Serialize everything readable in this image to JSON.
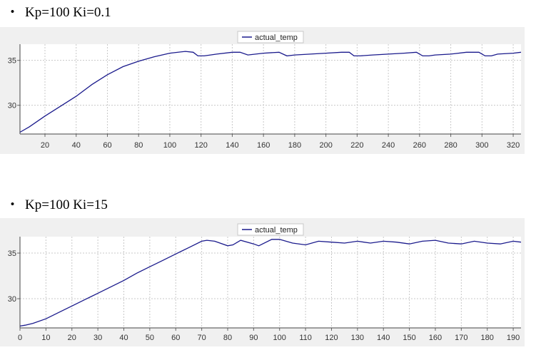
{
  "headings": [
    {
      "bullet": "・",
      "text": "Kp=100 Ki=0.1"
    },
    {
      "bullet": "・",
      "text": "Kp=100 Ki=15"
    }
  ],
  "colors": {
    "line": "#1a1a8c",
    "plot_bg": "#ffffff",
    "frame_bg": "#f0f0f0",
    "grid": "#c8c8c8"
  },
  "chart_data": [
    {
      "type": "line",
      "title": "",
      "xlabel": "",
      "ylabel": "",
      "legend": [
        "actual_temp"
      ],
      "legend_position": "top-center",
      "grid": true,
      "xlim": [
        4,
        325
      ],
      "ylim": [
        26.8,
        36.8
      ],
      "xticks": [
        20,
        40,
        60,
        80,
        100,
        120,
        140,
        160,
        180,
        200,
        220,
        240,
        260,
        280,
        300,
        320
      ],
      "yticks": [
        30,
        35
      ],
      "series": [
        {
          "name": "actual_temp",
          "x": [
            4,
            10,
            20,
            30,
            40,
            50,
            60,
            70,
            80,
            90,
            100,
            110,
            115,
            118,
            122,
            130,
            140,
            145,
            150,
            160,
            170,
            175,
            180,
            190,
            200,
            210,
            215,
            218,
            222,
            230,
            240,
            250,
            258,
            262,
            266,
            270,
            280,
            290,
            298,
            302,
            306,
            310,
            320,
            325
          ],
          "y": [
            27.0,
            27.6,
            28.8,
            29.9,
            31.0,
            32.3,
            33.4,
            34.3,
            34.9,
            35.4,
            35.8,
            36.0,
            35.9,
            35.5,
            35.5,
            35.7,
            35.9,
            35.9,
            35.6,
            35.8,
            35.9,
            35.5,
            35.6,
            35.7,
            35.8,
            35.9,
            35.9,
            35.5,
            35.5,
            35.6,
            35.7,
            35.8,
            35.9,
            35.5,
            35.5,
            35.6,
            35.7,
            35.9,
            35.9,
            35.5,
            35.5,
            35.7,
            35.8,
            35.9
          ]
        }
      ]
    },
    {
      "type": "line",
      "title": "",
      "xlabel": "",
      "ylabel": "",
      "legend": [
        "actual_temp"
      ],
      "legend_position": "top-center",
      "grid": true,
      "xlim": [
        0,
        193
      ],
      "ylim": [
        26.8,
        36.8
      ],
      "xticks": [
        0,
        10,
        20,
        30,
        40,
        50,
        60,
        70,
        80,
        90,
        100,
        110,
        120,
        130,
        140,
        150,
        160,
        170,
        180,
        190
      ],
      "yticks": [
        30,
        35
      ],
      "series": [
        {
          "name": "actual_temp",
          "x": [
            0,
            2,
            5,
            10,
            15,
            20,
            25,
            30,
            35,
            40,
            45,
            50,
            55,
            60,
            65,
            70,
            72,
            75,
            80,
            82,
            85,
            90,
            92,
            97,
            100,
            105,
            110,
            115,
            120,
            125,
            130,
            135,
            140,
            145,
            150,
            155,
            160,
            165,
            170,
            175,
            180,
            185,
            190,
            193
          ],
          "y": [
            27.0,
            27.1,
            27.3,
            27.8,
            28.5,
            29.2,
            29.9,
            30.6,
            31.3,
            32.0,
            32.8,
            33.5,
            34.2,
            34.9,
            35.6,
            36.3,
            36.4,
            36.3,
            35.8,
            35.9,
            36.4,
            36.0,
            35.8,
            36.5,
            36.5,
            36.1,
            35.9,
            36.3,
            36.2,
            36.1,
            36.3,
            36.1,
            36.3,
            36.2,
            36.0,
            36.3,
            36.4,
            36.1,
            36.0,
            36.3,
            36.1,
            36.0,
            36.3,
            36.2
          ]
        }
      ]
    }
  ]
}
